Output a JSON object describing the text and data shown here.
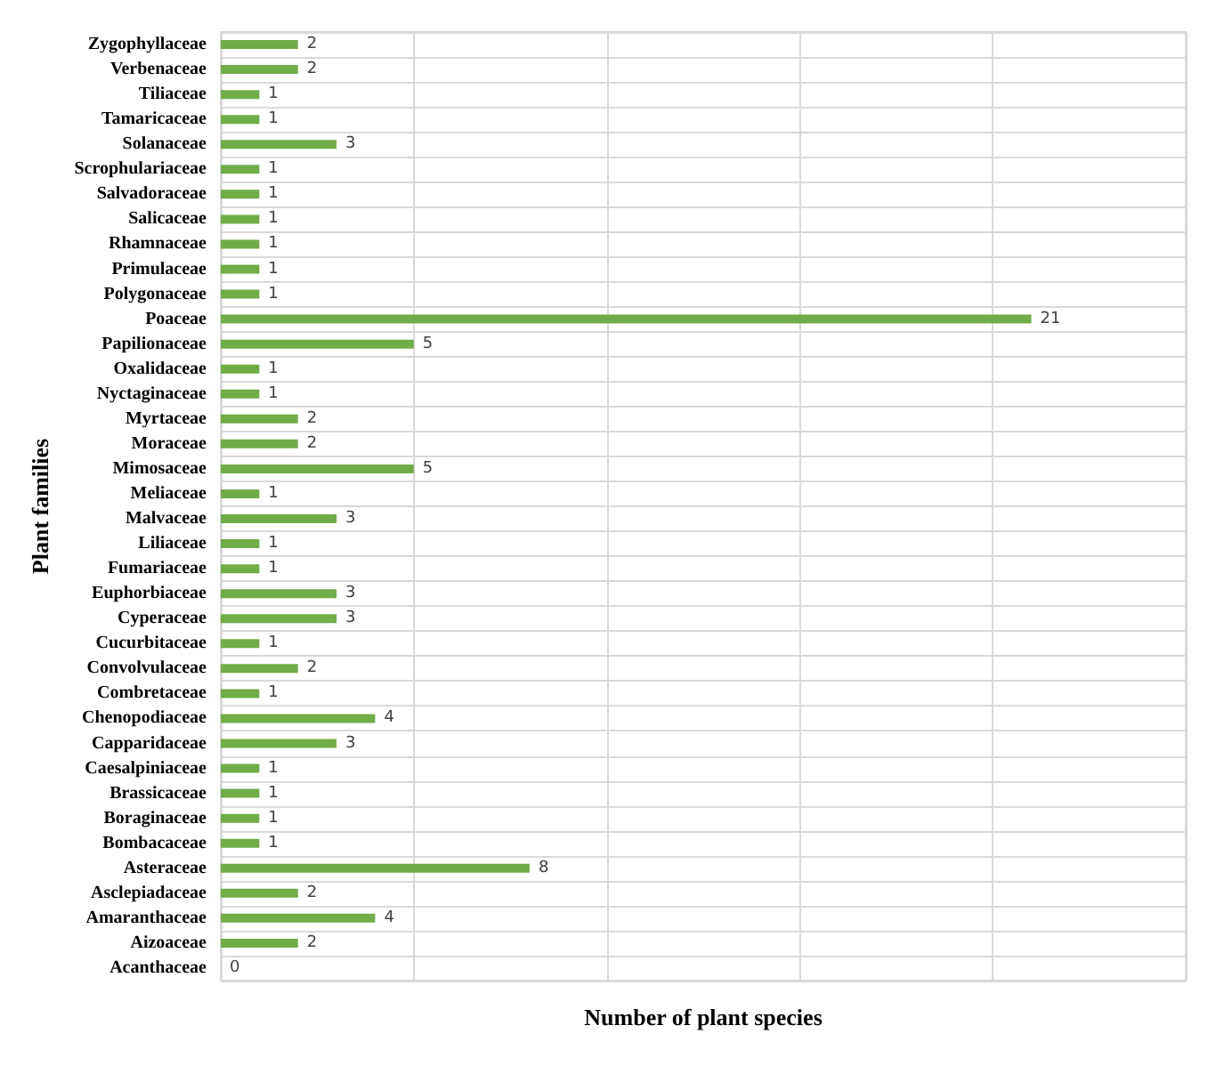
{
  "chart_data": {
    "type": "bar",
    "orientation": "horizontal",
    "xlabel": "Number of plant species",
    "ylabel": "Plant families",
    "categories": [
      "Zygophyllaceae",
      "Verbenaceae",
      "Tiliaceae",
      "Tamaricaceae",
      "Solanaceae",
      "Scrophulariaceae",
      "Salvadoraceae",
      "Salicaceae",
      "Rhamnaceae",
      "Primulaceae",
      "Polygonaceae",
      "Poaceae",
      "Papilionaceae",
      "Oxalidaceae",
      "Nyctaginaceae",
      "Myrtaceae",
      "Moraceae",
      "Mimosaceae",
      "Meliaceae",
      "Malvaceae",
      "Liliaceae",
      "Fumariaceae",
      "Euphorbiaceae",
      "Cyperaceae",
      "Cucurbitaceae",
      "Convolvulaceae",
      "Combretaceae",
      "Chenopodiaceae",
      "Capparidaceae",
      "Caesalpiniaceae",
      "Brassicaceae",
      "Boraginaceae",
      "Bombacaceae",
      "Asteraceae",
      "Asclepiadaceae",
      "Amaranthaceae",
      "Aizoaceae",
      "Acanthaceae"
    ],
    "values": [
      2,
      2,
      1,
      1,
      3,
      1,
      1,
      1,
      1,
      1,
      1,
      21,
      5,
      1,
      1,
      2,
      2,
      5,
      1,
      3,
      1,
      1,
      3,
      3,
      1,
      2,
      1,
      4,
      3,
      1,
      1,
      1,
      1,
      8,
      2,
      4,
      2,
      0
    ],
    "color": "#70ad47",
    "data_labels": true,
    "xlim": [
      0,
      25
    ],
    "xticks": [
      {
        "value": 0,
        "label": null
      },
      {
        "value": 5,
        "label": null
      },
      {
        "value": 10,
        "label": null
      },
      {
        "value": 15,
        "label": null
      },
      {
        "value": 20,
        "label": null
      },
      {
        "value": 25,
        "label": null
      }
    ],
    "tick_labels": "y",
    "grid": true
  }
}
